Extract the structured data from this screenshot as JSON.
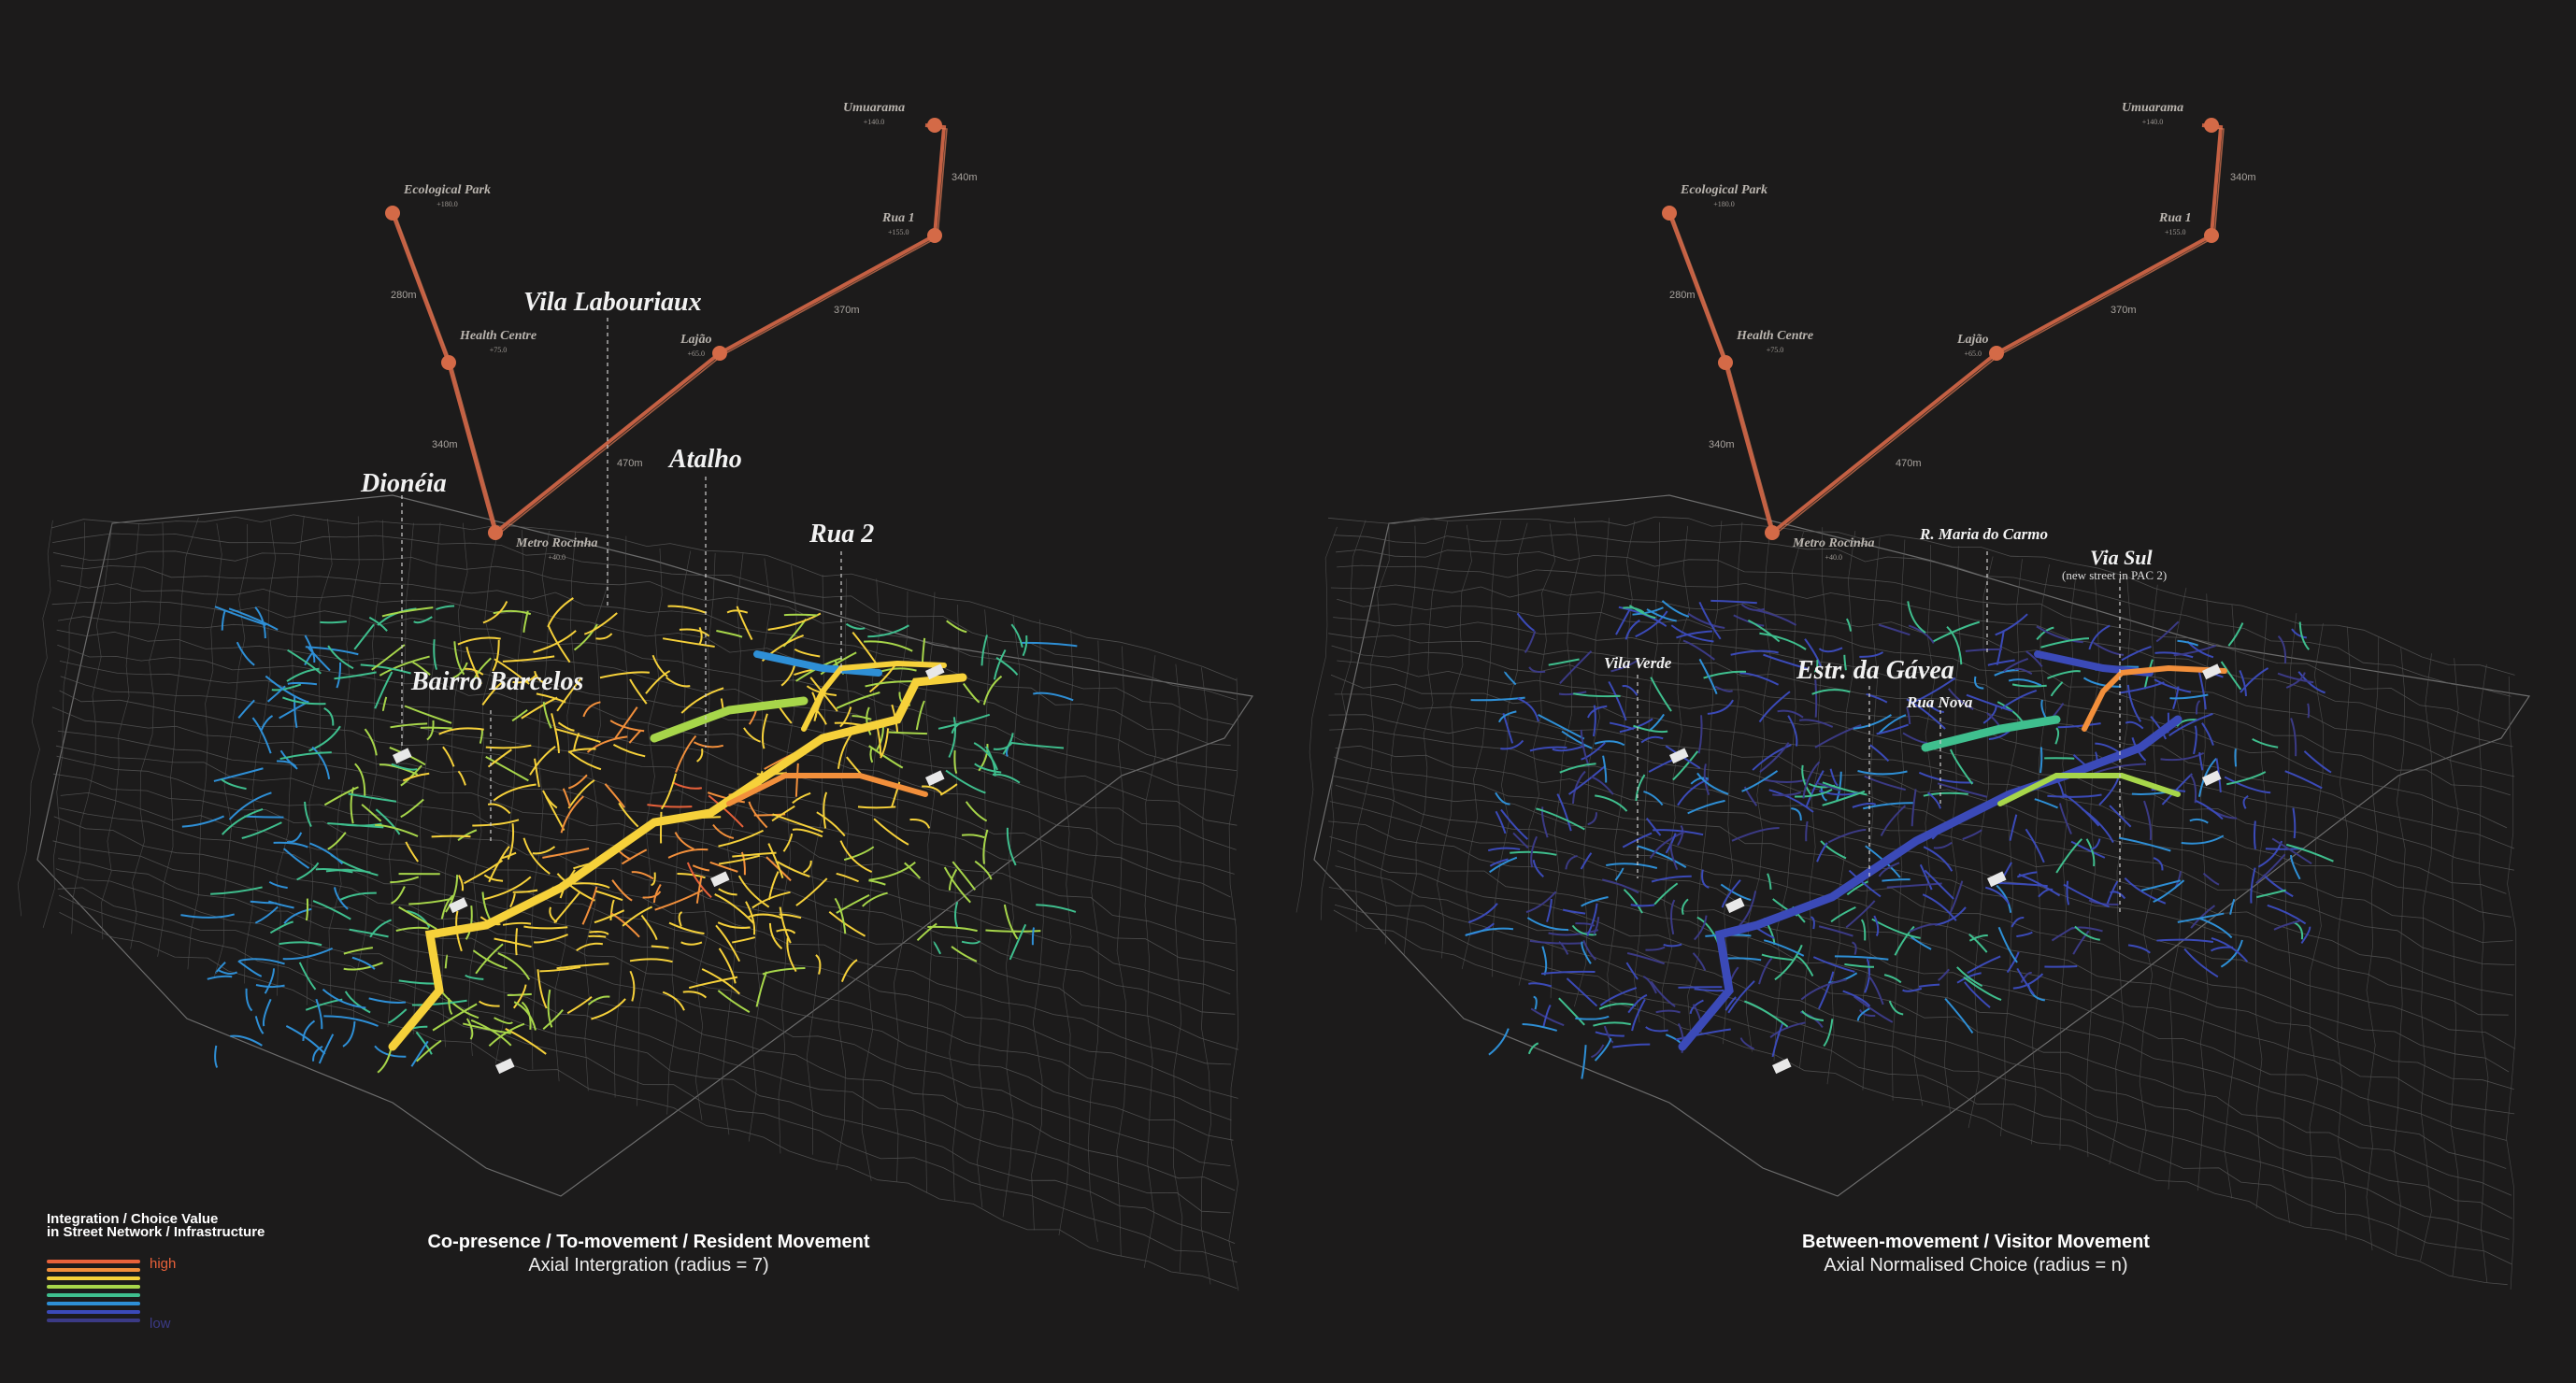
{
  "legend": {
    "title_line1": "Integration / Choice Value",
    "title_line2": "in Street Network / Infrastructure",
    "high_label": "high",
    "low_label": "low",
    "colors": [
      "#e8613a",
      "#f28f3b",
      "#f6d13a",
      "#a7d64a",
      "#3fbf8e",
      "#2e8fd6",
      "#3b4ab8",
      "#3b3a85"
    ]
  },
  "left_panel": {
    "caption_title": "Co-presence / To-movement / Resident Movement",
    "caption_sub": "Axial Intergration (radius = 7)",
    "places": {
      "vila_labouriaux": "Vila Labouriaux",
      "dioneia": "Dionéia",
      "atalho": "Atalho",
      "rua2": "Rua 2",
      "bairro_barcelos": "Bairro Barcelos"
    }
  },
  "right_panel": {
    "caption_title": "Between-movement / Visitor Movement",
    "caption_sub": "Axial Normalised Choice (radius = n)",
    "places": {
      "r_maria": "R. Maria do Carmo",
      "via_sul": "Via Sul",
      "via_sul_note": "(new street in PAC 2)",
      "vila_verde": "Vila Verde",
      "estr_gavea": "Estr. da Gávea",
      "rua_nova": "Rua Nova"
    }
  },
  "cable_car": {
    "stations": {
      "umuarama": {
        "name": "Umuarama",
        "elev": "+140.0"
      },
      "rua1": {
        "name": "Rua 1",
        "elev": "+155.0"
      },
      "lajao": {
        "name": "Lajão",
        "elev": "+65.0"
      },
      "metro_l1": "Metro",
      "metro_l2": "Rocinha",
      "metro_elev": "+40.0",
      "health_l1": "Health",
      "health_l2": "Centre",
      "health_elev": "+75.0",
      "eco_l1": "Ecological",
      "eco_l2": "Park",
      "eco_elev": "+180.0"
    },
    "distances": {
      "d340_top": "340m",
      "d370": "370m",
      "d470": "470m",
      "d280": "280m",
      "d340_left": "340m"
    }
  }
}
